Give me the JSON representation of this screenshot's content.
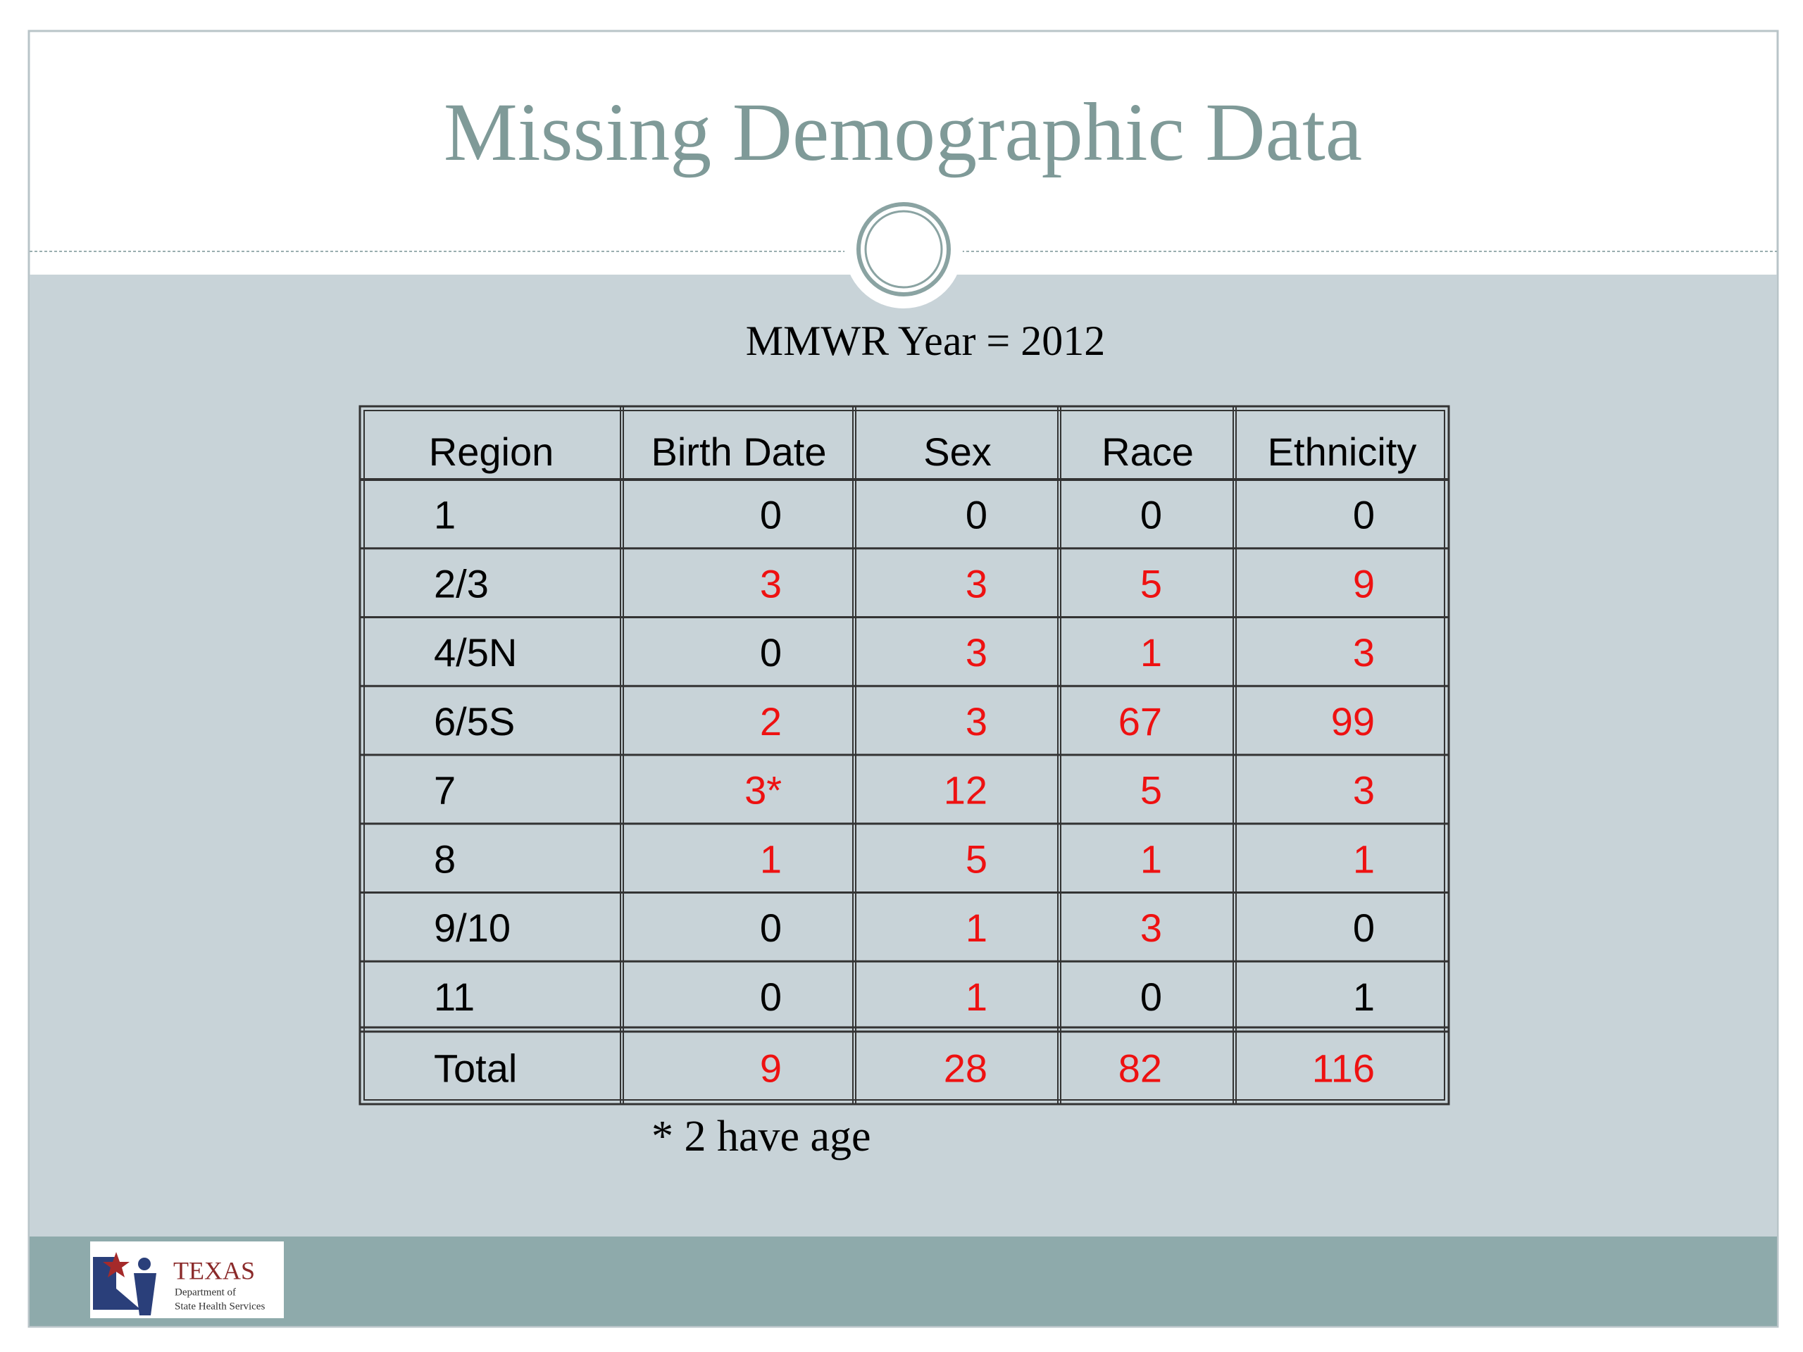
{
  "slide": {
    "title": "Missing Demographic Data",
    "subtitle": "MMWR Year = 2012",
    "footnote": "* 2 have age",
    "logo": {
      "name": "TEXAS",
      "line1": "Department of",
      "line2": "State Health Services"
    }
  },
  "table": {
    "header": [
      "Region",
      "Birth Date",
      "Sex",
      "Race",
      "Ethnicity"
    ],
    "rows": [
      [
        "1",
        0,
        0,
        0,
        0
      ],
      [
        "2/3",
        3,
        3,
        5,
        9
      ],
      [
        "4/5N",
        0,
        3,
        1,
        3
      ],
      [
        "6/5S",
        2,
        3,
        67,
        99
      ],
      [
        "7",
        "3*",
        12,
        5,
        3
      ],
      [
        "8",
        1,
        5,
        1,
        1
      ],
      [
        "9/10",
        0,
        1,
        3,
        0
      ],
      [
        "11",
        0,
        1,
        0,
        1
      ],
      [
        "Total",
        9,
        28,
        82,
        116
      ]
    ],
    "colors": [
      [
        "#000000",
        "#000000",
        "#000000",
        "#000000",
        "#000000"
      ],
      [
        "#000000",
        "#ee1111",
        "#ee1111",
        "#ee1111",
        "#ee1111"
      ],
      [
        "#000000",
        "#000000",
        "#ee1111",
        "#ee1111",
        "#ee1111"
      ],
      [
        "#000000",
        "#ee1111",
        "#ee1111",
        "#ee1111",
        "#ee1111"
      ],
      [
        "#000000",
        "#ee1111",
        "#ee1111",
        "#ee1111",
        "#ee1111"
      ],
      [
        "#000000",
        "#ee1111",
        "#ee1111",
        "#ee1111",
        "#ee1111"
      ],
      [
        "#000000",
        "#000000",
        "#ee1111",
        "#ee1111",
        "#000000"
      ],
      [
        "#000000",
        "#000000",
        "#ee1111",
        "#000000",
        "#000000"
      ],
      [
        "#000000",
        "#ee1111",
        "#ee1111",
        "#ee1111",
        "#ee1111"
      ]
    ]
  }
}
